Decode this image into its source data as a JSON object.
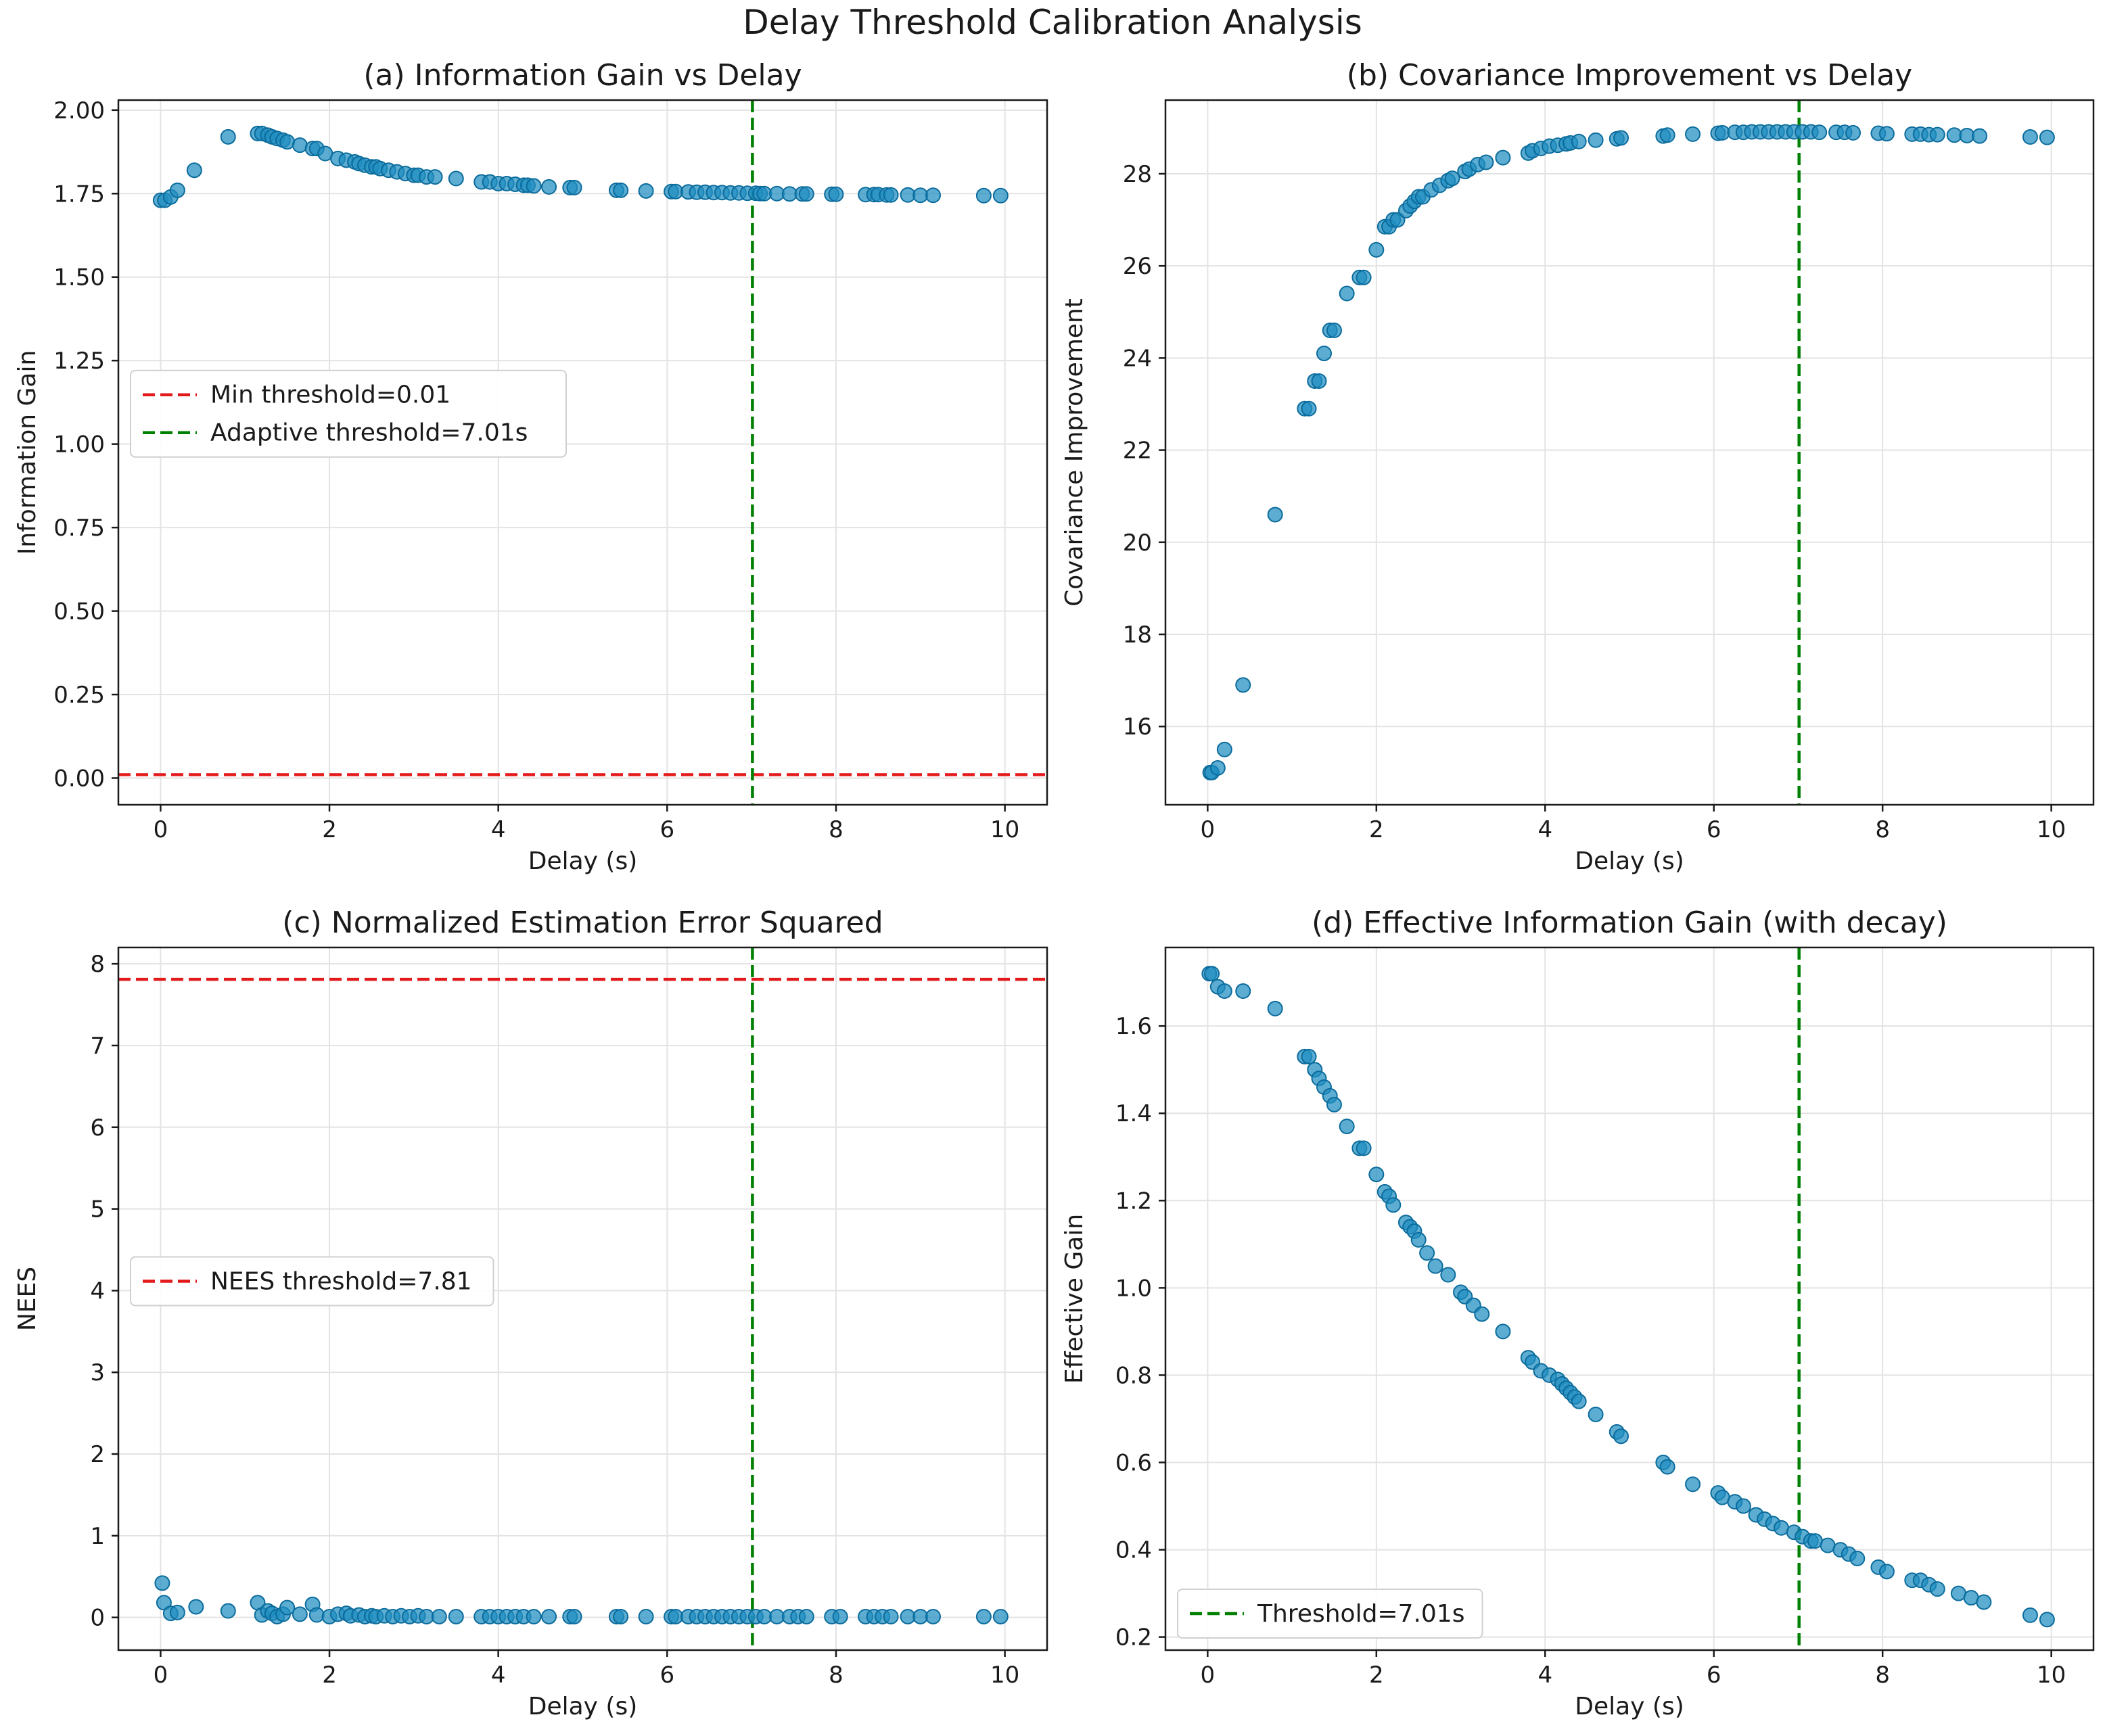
{
  "figure": {
    "title": "Delay Threshold Calibration Analysis"
  },
  "chart_data": [
    {
      "type": "scatter",
      "title": "(a) Information Gain vs Delay",
      "xlabel": "Delay (s)",
      "ylabel": "Information Gain",
      "xlim": [
        -0.5,
        10.5
      ],
      "ylim": [
        -0.08,
        2.03
      ],
      "xticks": [
        0,
        2,
        4,
        6,
        8,
        10
      ],
      "xtick_labels": [
        "0",
        "2",
        "4",
        "6",
        "8",
        "10"
      ],
      "yticks": [
        0,
        0.25,
        0.5,
        0.75,
        1,
        1.25,
        1.5,
        1.75,
        2
      ],
      "ytick_labels": [
        "0.00",
        "0.25",
        "0.50",
        "0.75",
        "1.00",
        "1.25",
        "1.50",
        "1.75",
        "2.00"
      ],
      "grid": true,
      "legend_position": "center-left",
      "legend": [
        "Min threshold=0.01",
        "Adaptive threshold=7.01s"
      ],
      "hlines": [
        {
          "y": 0.01,
          "color": "#e31a1c",
          "label": "Min threshold=0.01"
        }
      ],
      "vlines": [
        {
          "x": 7.01,
          "color": "#008000",
          "label": "Adaptive threshold=7.01s"
        }
      ],
      "series": [
        {
          "name": "Information Gain",
          "color": "#1f8dc1",
          "x": [
            0.0,
            0.05,
            0.12,
            0.2,
            0.4,
            0.8,
            1.15,
            1.2,
            1.27,
            1.32,
            1.38,
            1.45,
            1.5,
            1.65,
            1.8,
            1.85,
            1.95,
            2.1,
            2.2,
            2.3,
            2.35,
            2.42,
            2.5,
            2.55,
            2.6,
            2.7,
            2.8,
            2.9,
            3.0,
            3.05,
            3.15,
            3.25,
            3.5,
            3.8,
            3.9,
            4.0,
            4.1,
            4.2,
            4.3,
            4.35,
            4.42,
            4.6,
            4.85,
            4.9,
            5.4,
            5.45,
            5.75,
            6.05,
            6.1,
            6.25,
            6.35,
            6.45,
            6.55,
            6.65,
            6.75,
            6.85,
            6.95,
            7.05,
            7.1,
            7.15,
            7.3,
            7.45,
            7.6,
            7.65,
            7.95,
            8.0,
            8.35,
            8.45,
            8.5,
            8.6,
            8.65,
            8.85,
            9.0,
            9.15,
            9.75,
            9.95
          ],
          "y": [
            1.73,
            1.73,
            1.74,
            1.76,
            1.82,
            1.92,
            1.93,
            1.93,
            1.925,
            1.92,
            1.915,
            1.91,
            1.905,
            1.895,
            1.885,
            1.885,
            1.87,
            1.855,
            1.85,
            1.845,
            1.84,
            1.835,
            1.83,
            1.83,
            1.825,
            1.82,
            1.815,
            1.81,
            1.805,
            1.805,
            1.8,
            1.8,
            1.795,
            1.785,
            1.785,
            1.78,
            1.78,
            1.778,
            1.775,
            1.775,
            1.773,
            1.77,
            1.768,
            1.768,
            1.76,
            1.76,
            1.758,
            1.756,
            1.756,
            1.755,
            1.754,
            1.754,
            1.753,
            1.753,
            1.752,
            1.752,
            1.751,
            1.751,
            1.75,
            1.75,
            1.75,
            1.749,
            1.749,
            1.749,
            1.748,
            1.748,
            1.747,
            1.747,
            1.747,
            1.746,
            1.746,
            1.746,
            1.745,
            1.745,
            1.744,
            1.744
          ]
        }
      ]
    },
    {
      "type": "scatter",
      "title": "(b) Covariance Improvement vs Delay",
      "xlabel": "Delay (s)",
      "ylabel": "Covariance Improvement",
      "xlim": [
        -0.5,
        10.5
      ],
      "ylim": [
        14.3,
        29.6
      ],
      "xticks": [
        0,
        2,
        4,
        6,
        8,
        10
      ],
      "xtick_labels": [
        "0",
        "2",
        "4",
        "6",
        "8",
        "10"
      ],
      "yticks": [
        16,
        18,
        20,
        22,
        24,
        26,
        28
      ],
      "ytick_labels": [
        "16",
        "18",
        "20",
        "22",
        "24",
        "26",
        "28"
      ],
      "grid": true,
      "legend": [],
      "hlines": [],
      "vlines": [
        {
          "x": 7.01,
          "color": "#008000",
          "label": ""
        }
      ],
      "series": [
        {
          "name": "Covariance Improvement",
          "color": "#1f8dc1",
          "x": [
            0.03,
            0.05,
            0.12,
            0.2,
            0.42,
            0.8,
            1.15,
            1.2,
            1.27,
            1.32,
            1.38,
            1.45,
            1.5,
            1.65,
            1.8,
            1.85,
            2.0,
            2.1,
            2.15,
            2.2,
            2.25,
            2.35,
            2.4,
            2.45,
            2.5,
            2.55,
            2.65,
            2.75,
            2.85,
            2.9,
            3.05,
            3.1,
            3.2,
            3.3,
            3.5,
            3.8,
            3.85,
            3.95,
            4.05,
            4.15,
            4.25,
            4.3,
            4.4,
            4.6,
            4.85,
            4.9,
            5.4,
            5.45,
            5.75,
            6.05,
            6.1,
            6.25,
            6.35,
            6.45,
            6.55,
            6.65,
            6.75,
            6.85,
            6.95,
            7.05,
            7.15,
            7.25,
            7.45,
            7.55,
            7.65,
            7.95,
            8.05,
            8.35,
            8.45,
            8.55,
            8.65,
            8.85,
            9.0,
            9.15,
            9.75,
            9.95
          ],
          "y": [
            15.0,
            15.0,
            15.1,
            15.5,
            16.9,
            20.6,
            22.9,
            22.9,
            23.5,
            23.5,
            24.1,
            24.6,
            24.6,
            25.4,
            25.75,
            25.75,
            26.35,
            26.85,
            26.85,
            27.0,
            27.0,
            27.2,
            27.3,
            27.4,
            27.5,
            27.5,
            27.65,
            27.75,
            27.85,
            27.9,
            28.05,
            28.1,
            28.2,
            28.25,
            28.35,
            28.45,
            28.5,
            28.55,
            28.6,
            28.62,
            28.65,
            28.67,
            28.7,
            28.73,
            28.76,
            28.78,
            28.82,
            28.84,
            28.86,
            28.88,
            28.89,
            28.9,
            28.9,
            28.91,
            28.91,
            28.91,
            28.91,
            28.91,
            28.91,
            28.91,
            28.91,
            28.9,
            28.9,
            28.9,
            28.89,
            28.88,
            28.87,
            28.86,
            28.86,
            28.85,
            28.85,
            28.84,
            28.83,
            28.82,
            28.8,
            28.79
          ]
        }
      ]
    },
    {
      "type": "scatter",
      "title": "(c) Normalized Estimation Error Squared",
      "xlabel": "Delay (s)",
      "ylabel": "NEES",
      "xlim": [
        -0.5,
        10.5
      ],
      "ylim": [
        -0.4,
        8.2
      ],
      "xticks": [
        0,
        2,
        4,
        6,
        8,
        10
      ],
      "xtick_labels": [
        "0",
        "2",
        "4",
        "6",
        "8",
        "10"
      ],
      "yticks": [
        0,
        1,
        2,
        3,
        4,
        5,
        6,
        7,
        8
      ],
      "ytick_labels": [
        "0",
        "1",
        "2",
        "3",
        "4",
        "5",
        "6",
        "7",
        "8"
      ],
      "grid": true,
      "legend_position": "center-left",
      "legend": [
        "NEES threshold=7.81"
      ],
      "hlines": [
        {
          "y": 7.81,
          "color": "#e31a1c",
          "label": "NEES threshold=7.81"
        }
      ],
      "vlines": [
        {
          "x": 7.01,
          "color": "#008000",
          "label": ""
        }
      ],
      "series": [
        {
          "name": "NEES",
          "color": "#1f8dc1",
          "x": [
            0.02,
            0.04,
            0.12,
            0.2,
            0.42,
            0.8,
            1.15,
            1.2,
            1.27,
            1.32,
            1.38,
            1.45,
            1.5,
            1.65,
            1.8,
            1.85,
            2.0,
            2.1,
            2.2,
            2.25,
            2.35,
            2.42,
            2.5,
            2.55,
            2.65,
            2.75,
            2.85,
            2.95,
            3.05,
            3.15,
            3.3,
            3.5,
            3.8,
            3.9,
            4.0,
            4.1,
            4.2,
            4.3,
            4.42,
            4.6,
            4.85,
            4.9,
            5.4,
            5.45,
            5.75,
            6.05,
            6.1,
            6.25,
            6.35,
            6.45,
            6.55,
            6.65,
            6.75,
            6.85,
            6.95,
            7.05,
            7.15,
            7.3,
            7.45,
            7.55,
            7.65,
            7.95,
            8.05,
            8.35,
            8.45,
            8.55,
            8.65,
            8.85,
            9.0,
            9.15,
            9.75,
            9.95
          ],
          "y": [
            0.42,
            0.18,
            0.05,
            0.06,
            0.13,
            0.08,
            0.18,
            0.03,
            0.08,
            0.05,
            0.01,
            0.04,
            0.12,
            0.04,
            0.16,
            0.03,
            0.01,
            0.04,
            0.05,
            0.02,
            0.03,
            0.01,
            0.02,
            0.01,
            0.02,
            0.01,
            0.02,
            0.01,
            0.02,
            0.01,
            0.01,
            0.01,
            0.01,
            0.01,
            0.01,
            0.01,
            0.01,
            0.01,
            0.01,
            0.01,
            0.01,
            0.01,
            0.01,
            0.01,
            0.01,
            0.01,
            0.01,
            0.01,
            0.01,
            0.01,
            0.01,
            0.01,
            0.01,
            0.01,
            0.01,
            0.01,
            0.01,
            0.01,
            0.01,
            0.01,
            0.01,
            0.01,
            0.01,
            0.01,
            0.01,
            0.01,
            0.01,
            0.01,
            0.01,
            0.01,
            0.01,
            0.01
          ]
        }
      ]
    },
    {
      "type": "scatter",
      "title": "(d) Effective Information Gain (with decay)",
      "xlabel": "Delay (s)",
      "ylabel": "Effective Gain",
      "xlim": [
        -0.5,
        10.5
      ],
      "ylim": [
        0.17,
        1.78
      ],
      "xticks": [
        0,
        2,
        4,
        6,
        8,
        10
      ],
      "xtick_labels": [
        "0",
        "2",
        "4",
        "6",
        "8",
        "10"
      ],
      "yticks": [
        0.2,
        0.4,
        0.6,
        0.8,
        1.0,
        1.2,
        1.4,
        1.6
      ],
      "ytick_labels": [
        "0.2",
        "0.4",
        "0.6",
        "0.8",
        "1.0",
        "1.2",
        "1.4",
        "1.6"
      ],
      "grid": true,
      "legend_position": "lower-left",
      "legend": [
        "Threshold=7.01s"
      ],
      "hlines": [],
      "vlines": [
        {
          "x": 7.01,
          "color": "#008000",
          "label": "Threshold=7.01s"
        }
      ],
      "series": [
        {
          "name": "Effective Gain",
          "color": "#1f8dc1",
          "x": [
            0.02,
            0.05,
            0.12,
            0.2,
            0.42,
            0.8,
            1.15,
            1.2,
            1.27,
            1.32,
            1.38,
            1.45,
            1.5,
            1.65,
            1.8,
            1.85,
            2.0,
            2.1,
            2.15,
            2.2,
            2.35,
            2.4,
            2.45,
            2.5,
            2.6,
            2.7,
            2.85,
            3.0,
            3.05,
            3.15,
            3.25,
            3.5,
            3.8,
            3.85,
            3.95,
            4.05,
            4.15,
            4.2,
            4.25,
            4.3,
            4.35,
            4.4,
            4.6,
            4.85,
            4.9,
            5.4,
            5.45,
            5.75,
            6.05,
            6.1,
            6.25,
            6.35,
            6.5,
            6.6,
            6.7,
            6.8,
            6.95,
            7.05,
            7.15,
            7.2,
            7.35,
            7.5,
            7.6,
            7.7,
            7.95,
            8.05,
            8.35,
            8.45,
            8.55,
            8.65,
            8.9,
            9.05,
            9.2,
            9.75,
            9.95
          ],
          "y": [
            1.72,
            1.72,
            1.69,
            1.68,
            1.68,
            1.64,
            1.53,
            1.53,
            1.5,
            1.48,
            1.46,
            1.44,
            1.42,
            1.37,
            1.32,
            1.32,
            1.26,
            1.22,
            1.21,
            1.19,
            1.15,
            1.14,
            1.13,
            1.11,
            1.08,
            1.05,
            1.03,
            0.99,
            0.98,
            0.96,
            0.94,
            0.9,
            0.84,
            0.83,
            0.81,
            0.8,
            0.79,
            0.78,
            0.77,
            0.76,
            0.75,
            0.74,
            0.71,
            0.67,
            0.66,
            0.6,
            0.59,
            0.55,
            0.53,
            0.52,
            0.51,
            0.5,
            0.48,
            0.47,
            0.46,
            0.45,
            0.44,
            0.43,
            0.42,
            0.42,
            0.41,
            0.4,
            0.39,
            0.38,
            0.36,
            0.35,
            0.33,
            0.33,
            0.32,
            0.31,
            0.3,
            0.29,
            0.28,
            0.25,
            0.24
          ]
        }
      ]
    }
  ]
}
